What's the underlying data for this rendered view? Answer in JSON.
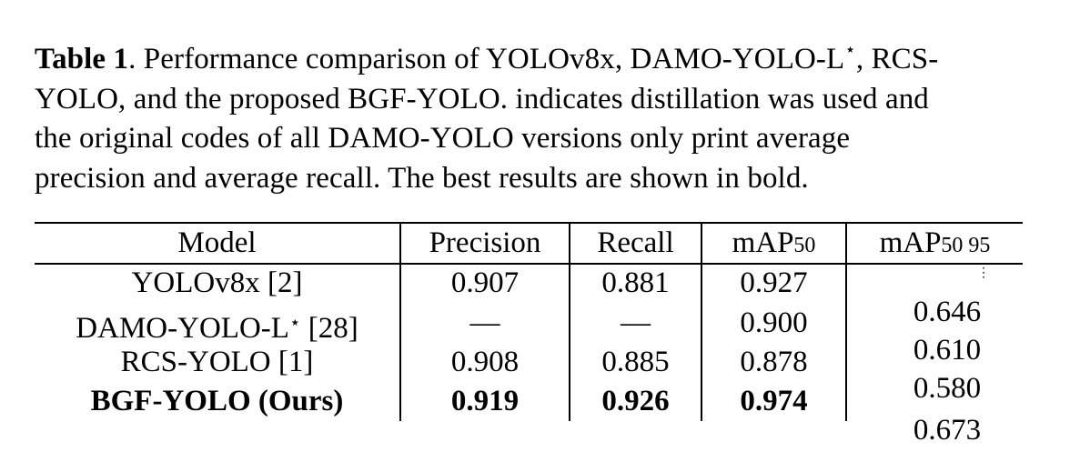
{
  "caption": {
    "label": "Table 1",
    "text_1": ". Performance comparison of YOLOv8x, DAMO-YOLO-L",
    "star": "⋆",
    "text_2": ", RCS-YOLO, and the proposed BGF-YOLO. indicates distillation was used and the original codes of all DAMO-YOLO versions only print average precision and average recall. The best results are shown in bold."
  },
  "table": {
    "headers": {
      "model": "Model",
      "precision": "Precision",
      "recall": "Recall",
      "map50_base": "mAP",
      "map50_sub": "50",
      "map5095_base": "mAP",
      "map5095_sub": "50 95"
    },
    "rows": [
      {
        "model": "YOLOv8x [2]",
        "model_star": "",
        "model_suffix": "",
        "precision": "0.907",
        "recall": "0.881",
        "map50": "0.927"
      },
      {
        "model": "DAMO-YOLO-L",
        "model_star": "⋆",
        "model_suffix": " [28]",
        "precision": "—",
        "recall": "—",
        "map50": "0.900"
      },
      {
        "model": "RCS-YOLO [1]",
        "model_star": "",
        "model_suffix": "",
        "precision": "0.908",
        "recall": "0.885",
        "map50": "0.878"
      },
      {
        "model": "BGF-YOLO (Ours)",
        "model_star": "",
        "model_suffix": "",
        "precision": "0.919",
        "recall": "0.926",
        "map50": "0.974"
      }
    ],
    "map5095_column": {
      "dots": "⋮",
      "values": [
        "0.646",
        "0.610",
        "0.580"
      ],
      "clipped_value": "0.673"
    }
  }
}
